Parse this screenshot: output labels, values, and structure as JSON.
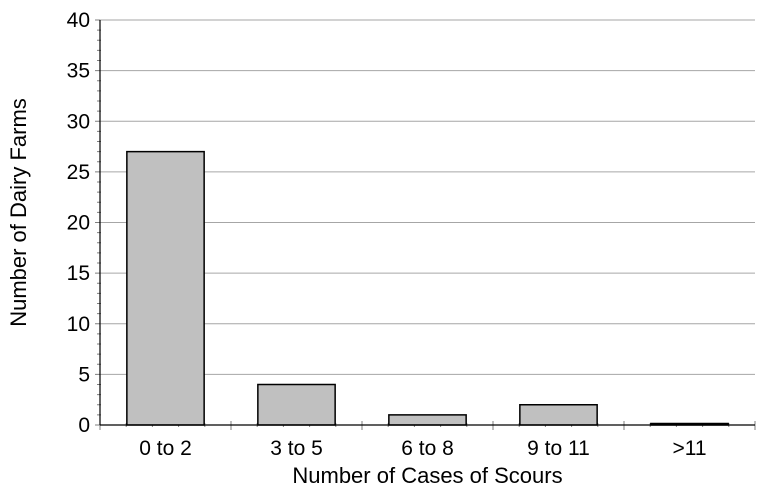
{
  "chart_data": {
    "type": "bar",
    "categories": [
      "0 to 2",
      "3 to 5",
      "6 to 8",
      "9 to 11",
      ">11"
    ],
    "values": [
      27,
      4,
      1,
      2,
      0
    ],
    "title": "",
    "xlabel": "Number of Cases of Scours",
    "ylabel": "Number of Dairy Farms",
    "ylim": [
      0,
      40
    ],
    "yticks": [
      0,
      5,
      10,
      15,
      20,
      25,
      30,
      35,
      40
    ],
    "grid": true,
    "legend": "none",
    "colors": {
      "bar_fill": "#c0c0c0",
      "bar_edge": "#000000",
      "grid": "#a6a6a6"
    }
  }
}
